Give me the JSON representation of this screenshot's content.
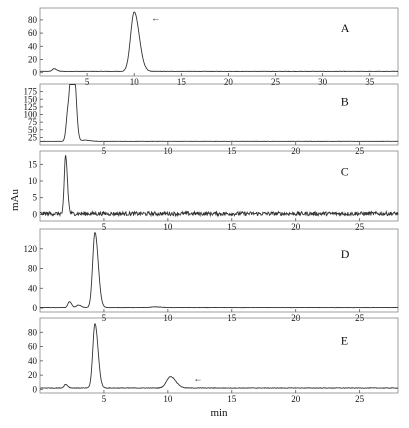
{
  "chart_data": {
    "type": "line",
    "y_axis_label": "mAu",
    "x_axis_label": "min",
    "colors": {
      "trace": "#333333",
      "axis": "#555555",
      "frame": "#888888"
    },
    "panels": [
      {
        "label": "A",
        "xlim": [
          0,
          38
        ],
        "ylim": [
          -5,
          98
        ],
        "x_ticks": [
          5,
          10,
          15,
          20,
          25,
          30,
          35
        ],
        "y_ticks": [
          0,
          20,
          40,
          60,
          80
        ],
        "baseline": 2,
        "noise": 0.3,
        "peaks": [
          {
            "rt": 1.5,
            "height": 4,
            "width": 0.2
          },
          {
            "rt": 10.0,
            "height": 90,
            "width": 0.38
          }
        ],
        "annotations": [
          {
            "type": "arrow",
            "x": 11.8,
            "y": 84,
            "text": "←"
          }
        ]
      },
      {
        "label": "B",
        "xlim": [
          0,
          28
        ],
        "ylim": [
          0,
          200
        ],
        "x_ticks": [
          5,
          10,
          15,
          20,
          25
        ],
        "y_ticks": [
          25,
          50,
          75,
          100,
          125,
          150,
          175
        ],
        "baseline": 12,
        "noise": 0.4,
        "peaks": [
          {
            "rt": 2.2,
            "height": 105,
            "width": 0.14
          },
          {
            "rt": 2.45,
            "height": 175,
            "width": 0.12
          },
          {
            "rt": 2.7,
            "height": 180,
            "width": 0.12
          },
          {
            "rt": 3.5,
            "height": 4,
            "width": 0.3
          }
        ],
        "annotations": []
      },
      {
        "label": "C",
        "xlim": [
          0,
          28
        ],
        "ylim": [
          -2,
          19
        ],
        "x_ticks": [
          5,
          10,
          15,
          20,
          25
        ],
        "y_ticks": [
          0,
          5,
          10,
          15
        ],
        "baseline": 0.2,
        "noise": 0.6,
        "peaks": [
          {
            "rt": 2.0,
            "height": 17.5,
            "width": 0.1
          }
        ],
        "annotations": []
      },
      {
        "label": "D",
        "xlim": [
          0,
          28
        ],
        "ylim": [
          -8,
          160
        ],
        "x_ticks": [
          5,
          10,
          15,
          20,
          25
        ],
        "y_ticks": [
          0,
          40,
          80,
          120
        ],
        "baseline": 1,
        "noise": 0.3,
        "peaks": [
          {
            "rt": 2.3,
            "height": 12,
            "width": 0.12
          },
          {
            "rt": 3.0,
            "height": 5,
            "width": 0.15
          },
          {
            "rt": 4.3,
            "height": 152,
            "width": 0.18
          },
          {
            "rt": 9.0,
            "height": 1.5,
            "width": 0.3
          }
        ],
        "annotations": []
      },
      {
        "label": "E",
        "xlim": [
          0,
          28
        ],
        "ylim": [
          -5,
          100
        ],
        "x_ticks": [
          5,
          10,
          15,
          20,
          25
        ],
        "y_ticks": [
          0,
          20,
          40,
          60,
          80
        ],
        "baseline": 2,
        "noise": 0.4,
        "peaks": [
          {
            "rt": 2.0,
            "height": 5,
            "width": 0.12
          },
          {
            "rt": 4.3,
            "height": 90,
            "width": 0.17
          },
          {
            "rt": 10.2,
            "height": 16,
            "width": 0.3
          }
        ],
        "annotations": [
          {
            "type": "arrow",
            "x": 12.0,
            "y": 17,
            "text": "←"
          }
        ]
      }
    ]
  }
}
